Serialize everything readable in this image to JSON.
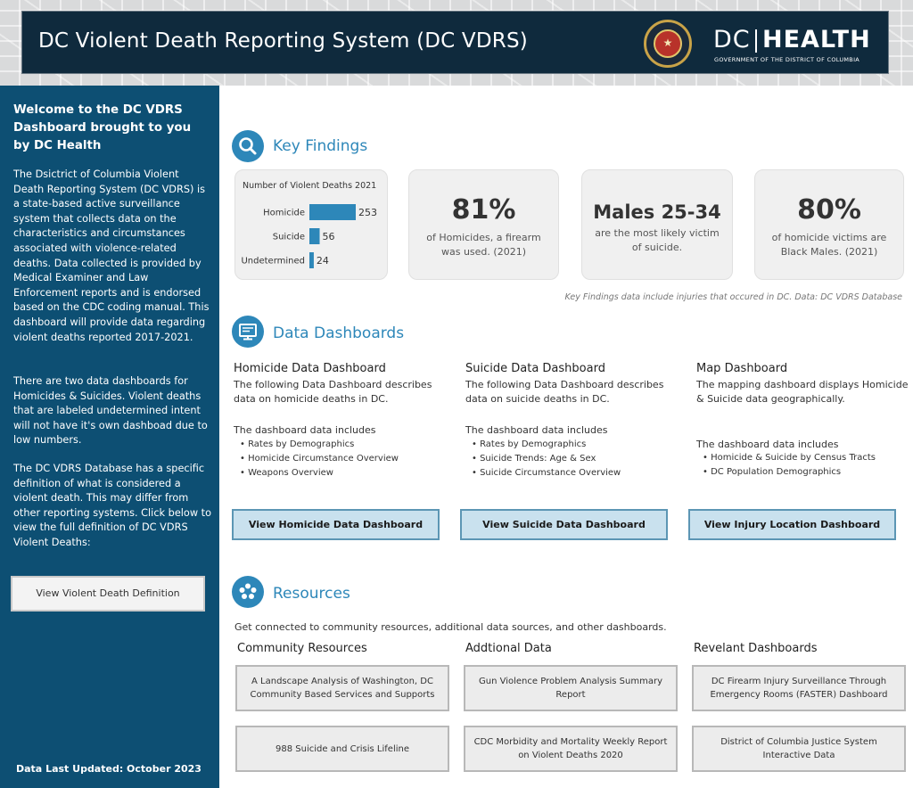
{
  "header": {
    "title": "DC Violent Death Reporting System (DC VDRS)",
    "logo_dc": "DC",
    "logo_health": "HEALTH",
    "logo_sub": "GOVERNMENT OF THE DISTRICT OF COLUMBIA"
  },
  "sidebar": {
    "welcome": "Welcome to the DC VDRS Dashboard brought to you by DC Health",
    "p1": "The Dsictrict of Columbia Violent Death Reporting System (DC VDRS) is a state-based active surveillance system that collects data on the characteristics and circumstances associated with violence-related deaths. Data collected is provided by Medical Examiner and Law Enforcement reports and is endorsed based on the CDC coding manual. This dashboard will provide data regarding violent deaths reported 2017-2021.",
    "p2": "There are two data dashboards for Homicides & Suicides. Violent deaths that are labeled undetermined intent will not have it's own dashboad due to low numbers.",
    "p3": "The DC VDRS Database has a specific definition of what is considered a violent death. This may differ from other reporting systems. Click below to view the full definition of DC VDRS Violent Deaths:",
    "definition_button": "View Violent Death Definition",
    "last_updated": "Data Last Updated: October 2023"
  },
  "key_findings": {
    "title": "Key Findings",
    "card2_big": "81%",
    "card2_text": "of Homicides, a firearm was used. (2021)",
    "card3_big": "Males 25-34",
    "card3_text": "are the most likely victim of suicide.",
    "card4_big": "80%",
    "card4_text": "of homicide victims are Black Males. (2021)",
    "note": "Key Findings data include injuries that occured in DC. Data: DC VDRS Database"
  },
  "chart_data": {
    "type": "bar",
    "orientation": "horizontal",
    "title": "Number of Violent Deaths 2021",
    "categories": [
      "Homicide",
      "Suicide",
      "Undetermined"
    ],
    "values": [
      253,
      56,
      24
    ],
    "value_labels": [
      "253",
      "56",
      "24"
    ],
    "bar_color": "#2d87b9"
  },
  "data_dashboards": {
    "title": "Data Dashboards",
    "columns": [
      {
        "heading": "Homicide Data Dashboard",
        "description": "The following Data Dashboard describes data on homicide deaths in DC.",
        "includes": "The dashboard data includes",
        "items": [
          "• Rates by Demographics",
          "• Homicide Circumstance Overview",
          "• Weapons Overview"
        ],
        "button": "View Homicide Data Dashboard"
      },
      {
        "heading": "Suicide Data Dashboard",
        "description": "The following Data Dashboard describes data on suicide deaths in DC.",
        "includes": "The dashboard data includes",
        "items": [
          "• Rates by Demographics",
          "• Suicide Trends: Age & Sex",
          "• Suicide Circumstance Overview"
        ],
        "button": "View Suicide Data Dashboard"
      },
      {
        "heading": "Map Dashboard",
        "description": "The mapping dashboard displays Homicide & Suicide data geographically.",
        "includes": "The dashboard data includes",
        "items": [
          "• Homicide & Suicide by Census Tracts",
          "• DC Population Demographics"
        ],
        "button": "View Injury Location Dashboard"
      }
    ]
  },
  "resources": {
    "title": "Resources",
    "intro": "Get connected to community resources, additional data sources, and other dashboards.",
    "columns": [
      {
        "heading": "Community Resources",
        "links": [
          "A Landscape Analysis of Washington, DC Community Based Services and Supports",
          "988 Suicide and Crisis Lifeline"
        ]
      },
      {
        "heading": "Addtional Data",
        "links": [
          "Gun Violence Problem Analysis Summary Report",
          "CDC Morbidity and Mortality Weekly Report on Violent Deaths 2020"
        ]
      },
      {
        "heading": "Revelant Dashboards",
        "links": [
          "DC Firearm Injury Surveillance Through Emergency Rooms (FASTER) Dashboard",
          "District of Columbia Justice System Interactive Data"
        ]
      }
    ]
  }
}
